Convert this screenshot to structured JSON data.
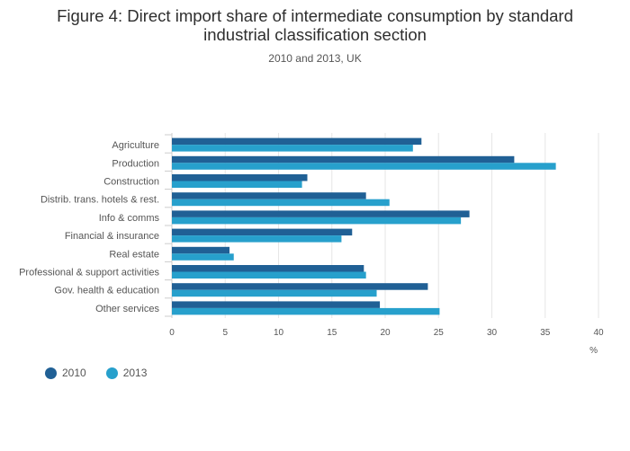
{
  "chart_data": {
    "type": "bar",
    "orientation": "horizontal",
    "title_lines": [
      "Figure 4: Direct import share of intermediate consumption by standard",
      "industrial classification section"
    ],
    "subtitle": "2010 and 2013, UK",
    "xlabel": "%",
    "xlim": [
      0,
      40
    ],
    "xticks": [
      0,
      5,
      10,
      15,
      20,
      25,
      30,
      35,
      40
    ],
    "grid": true,
    "legend_position": "bottom-left",
    "categories": [
      "Agriculture",
      "Production",
      "Construction",
      "Distrib. trans. hotels & rest.",
      "Info & comms",
      "Financial & insurance",
      "Real estate",
      "Professional & support activities",
      "Gov. health & education",
      "Other services"
    ],
    "series": [
      {
        "name": "2010",
        "color": "#206095",
        "values": [
          23.4,
          32.1,
          12.7,
          18.2,
          27.9,
          16.9,
          5.4,
          18.0,
          24.0,
          19.5
        ]
      },
      {
        "name": "2013",
        "color": "#27a0cc",
        "values": [
          22.6,
          36.0,
          12.2,
          20.4,
          27.1,
          15.9,
          5.8,
          18.2,
          19.2,
          25.1
        ]
      }
    ]
  }
}
